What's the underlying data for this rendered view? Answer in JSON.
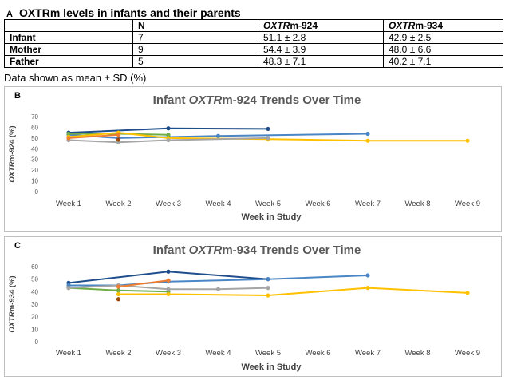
{
  "panel_a": {
    "letter": "A",
    "title": "OXTRm levels in infants and their parents",
    "header": {
      "c0": "",
      "c1": "N",
      "c2_italic": "OXTR",
      "c2_rest": "m-924",
      "c3_italic": "OXTR",
      "c3_rest": "m-934"
    },
    "rows": [
      {
        "label": "Infant",
        "n": "7",
        "m924": "51.1 ± 2.8",
        "m934": "42.9 ± 2.5"
      },
      {
        "label": "Mother",
        "n": "9",
        "m924": "54.4 ± 3.9",
        "m934": "48.0 ± 6.6"
      },
      {
        "label": "Father",
        "n": "5",
        "m924": "48.3 ± 7.1",
        "m934": "40.2 ± 7.1"
      }
    ],
    "note": "Data shown as mean ± SD (%)"
  },
  "chart_data": [
    {
      "type": "line",
      "panel_letter": "B",
      "title_pre": "Infant ",
      "title_italic": "OXTR",
      "title_post": "m-924 Trends Over Time",
      "xlabel": "Week in Study",
      "ylabel_italic": "OXTR",
      "ylabel_rest": "m-924 (%)",
      "categories": [
        "Week 1",
        "Week 2",
        "Week 3",
        "Week 4",
        "Week 5",
        "Week 6",
        "Week 7",
        "Week 8",
        "Week 9"
      ],
      "ylim": [
        0,
        70
      ],
      "yticks": [
        0,
        10,
        20,
        30,
        40,
        50,
        60,
        70
      ],
      "series": [
        {
          "color": "#1f4e8c",
          "points": [
            [
              1,
              55
            ],
            [
              3,
              59
            ],
            [
              5,
              58.5
            ]
          ]
        },
        {
          "color": "#4a86c5",
          "points": [
            [
              1,
              53
            ],
            [
              2,
              50
            ],
            [
              3,
              51
            ],
            [
              4,
              52
            ],
            [
              7,
              54
            ]
          ]
        },
        {
          "color": "#70ad47",
          "points": [
            [
              1,
              54
            ],
            [
              2,
              54
            ],
            [
              3,
              53
            ]
          ]
        },
        {
          "color": "#ffc000",
          "points": [
            [
              1,
              51
            ],
            [
              2,
              55
            ],
            [
              3,
              50
            ],
            [
              5,
              49
            ],
            [
              7,
              47.5
            ],
            [
              9,
              47.5
            ]
          ]
        },
        {
          "color": "#a5a5a5",
          "points": [
            [
              1,
              48
            ],
            [
              2,
              46
            ],
            [
              3,
              48
            ],
            [
              5,
              50
            ]
          ]
        },
        {
          "color": "#ed7d31",
          "points": [
            [
              1,
              50
            ],
            [
              2,
              53
            ]
          ]
        },
        {
          "color": "#9e480e",
          "points": [
            [
              2,
              48.5
            ]
          ]
        }
      ]
    },
    {
      "type": "line",
      "panel_letter": "C",
      "title_pre": "Infant ",
      "title_italic": "OXTR",
      "title_post": "m-934 Trends Over Time",
      "xlabel": "Week in Study",
      "ylabel_italic": "OXTR",
      "ylabel_rest": "m-934 (%)",
      "categories": [
        "Week 1",
        "Week 2",
        "Week 3",
        "Week 4",
        "Week 5",
        "Week 6",
        "Week 7",
        "Week 8",
        "Week 9"
      ],
      "ylim": [
        0,
        60
      ],
      "yticks": [
        0,
        10,
        20,
        30,
        40,
        50,
        60
      ],
      "series": [
        {
          "color": "#1f4e8c",
          "points": [
            [
              1,
              47
            ],
            [
              3,
              56
            ],
            [
              5,
              50
            ]
          ]
        },
        {
          "color": "#4a86c5",
          "points": [
            [
              1,
              45
            ],
            [
              2,
              45
            ],
            [
              3,
              48
            ],
            [
              5,
              50
            ],
            [
              7,
              53
            ]
          ]
        },
        {
          "color": "#70ad47",
          "points": [
            [
              1,
              43
            ],
            [
              2,
              41
            ],
            [
              3,
              40
            ]
          ]
        },
        {
          "color": "#ffc000",
          "points": [
            [
              2,
              38
            ],
            [
              3,
              38
            ],
            [
              5,
              37
            ],
            [
              7,
              43
            ],
            [
              9,
              39
            ]
          ]
        },
        {
          "color": "#a5a5a5",
          "points": [
            [
              1,
              43
            ],
            [
              2,
              45
            ],
            [
              3,
              42
            ],
            [
              4,
              42
            ],
            [
              5,
              43
            ]
          ]
        },
        {
          "color": "#ed7d31",
          "points": [
            [
              2,
              44
            ],
            [
              3,
              49
            ]
          ]
        },
        {
          "color": "#9e480e",
          "points": [
            [
              2,
              34
            ]
          ]
        }
      ]
    }
  ]
}
